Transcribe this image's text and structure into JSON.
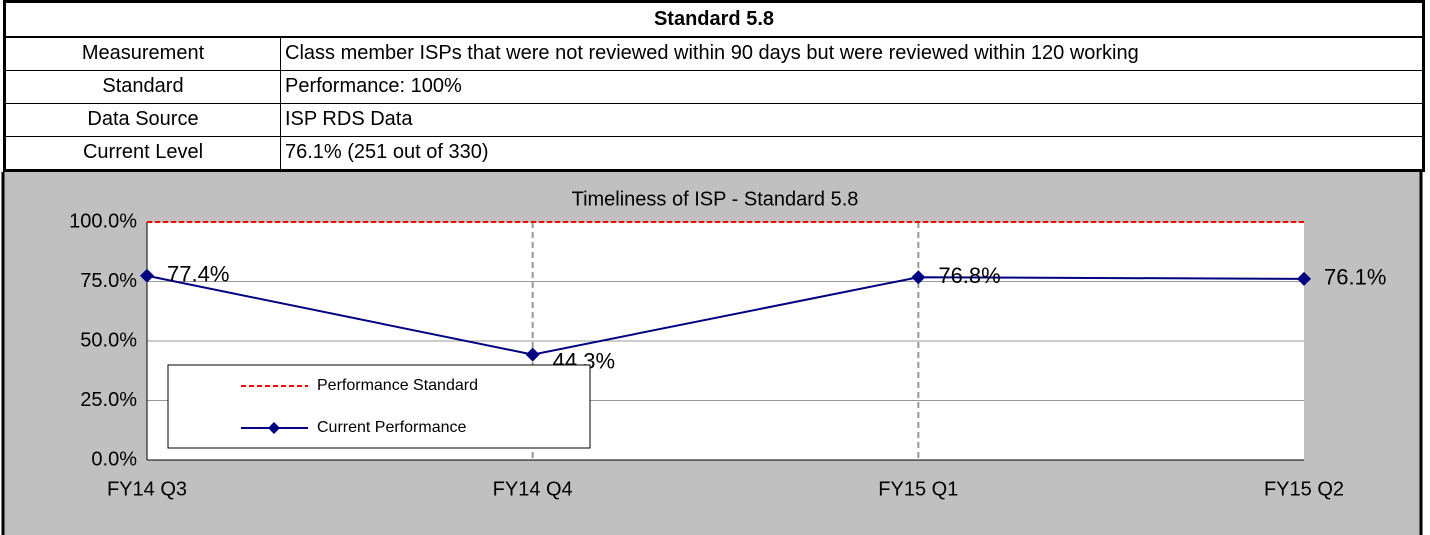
{
  "table": {
    "title": "Standard 5.8",
    "rows": [
      [
        "Measurement",
        "Class member ISPs that were not reviewed within 90 days but were reviewed within 120 working"
      ],
      [
        "Standard",
        "Performance: 100%"
      ],
      [
        "Data Source",
        "ISP RDS Data"
      ],
      [
        "Current Level",
        "76.1% (251 out of 330)"
      ]
    ]
  },
  "chart_data": {
    "type": "line",
    "title": "Timeliness of ISP - Standard 5.8",
    "categories": [
      "FY14 Q3",
      "FY14 Q4",
      "FY15 Q1",
      "FY15 Q2"
    ],
    "series": [
      {
        "name": "Performance Standard",
        "color": "#ff0000",
        "line_style": "dashed",
        "values": [
          100,
          100,
          100,
          100
        ]
      },
      {
        "name": "Current Performance",
        "color": "#000080",
        "marker": "diamond",
        "values": [
          77.4,
          44.3,
          76.8,
          76.1
        ],
        "value_labels": [
          "77.4%",
          "44.3%",
          "76.8%",
          "76.1%"
        ]
      }
    ],
    "ylim": [
      0,
      100
    ],
    "yticks": [
      {
        "value": 0,
        "label": "0.0%"
      },
      {
        "value": 25,
        "label": "25.0%"
      },
      {
        "value": 50,
        "label": "50.0%"
      },
      {
        "value": 75,
        "label": "75.0%"
      },
      {
        "value": 100,
        "label": "100.0%"
      }
    ],
    "ygrid": true,
    "xgrid": true,
    "legend": "lower left"
  }
}
